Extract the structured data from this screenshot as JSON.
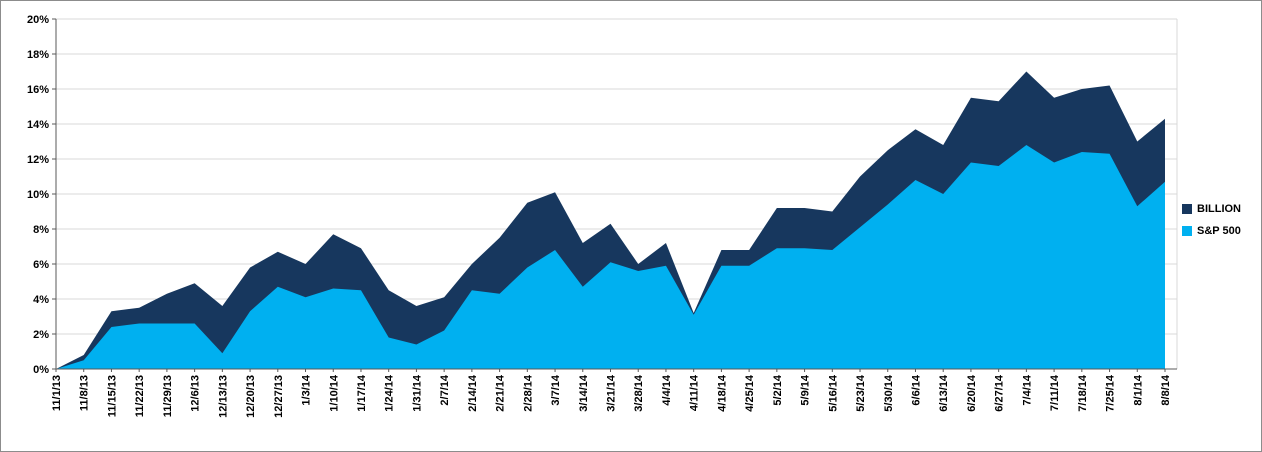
{
  "chart_data": {
    "type": "area",
    "title": "",
    "xlabel": "",
    "ylabel": "",
    "ylim": [
      0,
      20
    ],
    "ytick_step": 2,
    "ytick_format": "percent",
    "grid": true,
    "legend_position": "right",
    "x": [
      "11/1/13",
      "11/8/13",
      "11/15/13",
      "11/22/13",
      "11/29/13",
      "12/6/13",
      "12/13/13",
      "12/20/13",
      "12/27/13",
      "1/3/14",
      "1/10/14",
      "1/17/14",
      "1/24/14",
      "1/31/14",
      "2/7/14",
      "2/14/14",
      "2/21/14",
      "2/28/14",
      "3/7/14",
      "3/14/14",
      "3/21/14",
      "3/28/14",
      "4/4/14",
      "4/11/14",
      "4/18/14",
      "4/25/14",
      "5/2/14",
      "5/9/14",
      "5/16/14",
      "5/23/14",
      "5/30/14",
      "6/6/14",
      "6/13/14",
      "6/20/14",
      "6/27/14",
      "7/4/14",
      "7/11/14",
      "7/18/14",
      "7/25/14",
      "8/1/14",
      "8/8/14"
    ],
    "series": [
      {
        "name": "BILLION",
        "color": "#17375E",
        "values": [
          0.0,
          0.8,
          3.3,
          3.5,
          4.3,
          4.9,
          3.6,
          5.8,
          6.7,
          6.0,
          7.7,
          6.9,
          4.5,
          3.6,
          4.1,
          6.0,
          7.5,
          9.5,
          10.1,
          7.2,
          8.3,
          6.0,
          7.2,
          3.2,
          6.8,
          6.8,
          9.2,
          9.2,
          9.0,
          11.0,
          12.5,
          13.7,
          12.8,
          15.5,
          15.3,
          17.0,
          15.5,
          16.0,
          16.2,
          13.0,
          14.3
        ]
      },
      {
        "name": "S&P 500",
        "color": "#00B0F0",
        "values": [
          0.0,
          0.5,
          2.4,
          2.6,
          2.6,
          2.6,
          0.9,
          3.3,
          4.7,
          4.1,
          4.6,
          4.5,
          1.8,
          1.4,
          2.2,
          4.5,
          4.3,
          5.8,
          6.8,
          4.7,
          6.1,
          5.6,
          5.9,
          3.1,
          5.9,
          5.9,
          6.9,
          6.9,
          6.8,
          8.1,
          9.4,
          10.8,
          10.0,
          11.8,
          11.6,
          12.8,
          11.8,
          12.4,
          12.3,
          9.3,
          10.7
        ]
      }
    ],
    "colors": {
      "gridline": "#D9D9D9",
      "axis": "#595959",
      "tick_text": "#000000",
      "background": "#FFFFFF"
    }
  }
}
